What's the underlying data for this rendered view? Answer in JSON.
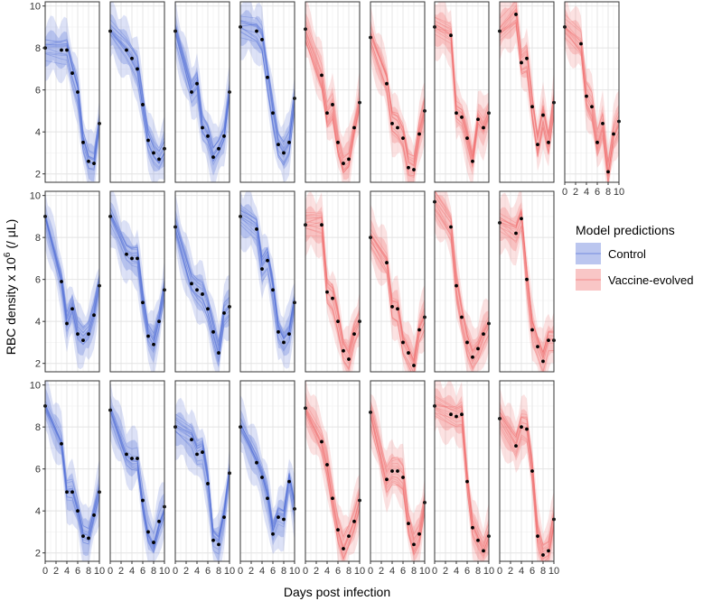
{
  "chart_data": {
    "type": "line",
    "facets": {
      "rows": 3,
      "cols": 9
    },
    "xlabel": "Days post infection",
    "ylabel": "RBC density x 10",
    "ylabel_sup": "6",
    "ylabel_suffix": " (/ μL)",
    "xlim": [
      0,
      10
    ],
    "ylim": [
      1.6,
      10.2
    ],
    "x_ticks": [
      0,
      2,
      4,
      6,
      8,
      10
    ],
    "y_ticks": [
      2,
      4,
      6,
      8,
      10
    ],
    "x_tick_labels": [
      "0",
      "2",
      "4",
      "6",
      "8",
      "10"
    ],
    "y_tick_labels": [
      "2",
      "4",
      "6",
      "8",
      "10"
    ],
    "grid": true,
    "legend": {
      "title": "Model predictions",
      "position": "right",
      "entries": [
        {
          "label": "Control",
          "color": "#5470d8"
        },
        {
          "label": "Vaccine-evolved",
          "color": "#f07070"
        }
      ]
    },
    "panels": [
      {
        "row": 0,
        "col": 0,
        "group": "Control",
        "points": [
          [
            0,
            8.0
          ],
          [
            3,
            7.9
          ],
          [
            4,
            7.9
          ],
          [
            5,
            6.8
          ],
          [
            6,
            5.9
          ],
          [
            7,
            3.5
          ],
          [
            8,
            2.6
          ],
          [
            9,
            2.5
          ],
          [
            10,
            4.4
          ]
        ]
      },
      {
        "row": 0,
        "col": 1,
        "group": "Control",
        "points": [
          [
            0,
            8.8
          ],
          [
            3,
            7.9
          ],
          [
            4,
            7.5
          ],
          [
            5,
            7.0
          ],
          [
            6,
            5.3
          ],
          [
            7,
            3.6
          ],
          [
            8,
            3.0
          ],
          [
            9,
            2.7
          ],
          [
            10,
            3.2
          ]
        ]
      },
      {
        "row": 0,
        "col": 2,
        "group": "Control",
        "points": [
          [
            0,
            8.8
          ],
          [
            3,
            5.9
          ],
          [
            4,
            6.3
          ],
          [
            5,
            4.2
          ],
          [
            6,
            3.8
          ],
          [
            7,
            2.8
          ],
          [
            8,
            3.2
          ],
          [
            9,
            3.8
          ],
          [
            10,
            5.9
          ]
        ]
      },
      {
        "row": 0,
        "col": 3,
        "group": "Control",
        "points": [
          [
            0,
            9.0
          ],
          [
            3,
            8.8
          ],
          [
            4,
            8.4
          ],
          [
            5,
            6.6
          ],
          [
            6,
            4.9
          ],
          [
            7,
            3.4
          ],
          [
            8,
            3.0
          ],
          [
            9,
            3.5
          ],
          [
            10,
            5.6
          ]
        ]
      },
      {
        "row": 0,
        "col": 4,
        "group": "Vaccine-evolved",
        "points": [
          [
            0,
            8.9
          ],
          [
            3,
            6.7
          ],
          [
            4,
            4.9
          ],
          [
            5,
            5.3
          ],
          [
            6,
            3.5
          ],
          [
            7,
            2.5
          ],
          [
            8,
            2.7
          ],
          [
            9,
            4.2
          ],
          [
            10,
            5.4
          ]
        ]
      },
      {
        "row": 0,
        "col": 5,
        "group": "Vaccine-evolved",
        "points": [
          [
            0,
            8.5
          ],
          [
            3,
            6.3
          ],
          [
            4,
            4.4
          ],
          [
            5,
            4.2
          ],
          [
            6,
            3.7
          ],
          [
            7,
            2.3
          ],
          [
            8,
            2.2
          ],
          [
            9,
            3.9
          ],
          [
            10,
            5.0
          ]
        ]
      },
      {
        "row": 0,
        "col": 6,
        "group": "Vaccine-evolved",
        "points": [
          [
            0,
            9.0
          ],
          [
            3,
            8.6
          ],
          [
            4,
            4.9
          ],
          [
            5,
            4.7
          ],
          [
            6,
            3.7
          ],
          [
            7,
            2.6
          ],
          [
            8,
            4.6
          ],
          [
            9,
            4.2
          ],
          [
            10,
            4.9
          ]
        ]
      },
      {
        "row": 0,
        "col": 7,
        "group": "Vaccine-evolved",
        "points": [
          [
            0,
            8.8
          ],
          [
            3,
            9.6
          ],
          [
            4,
            7.3
          ],
          [
            5,
            7.5
          ],
          [
            6,
            5.2
          ],
          [
            7,
            3.4
          ],
          [
            8,
            4.8
          ],
          [
            9,
            3.5
          ],
          [
            10,
            5.4
          ]
        ]
      },
      {
        "row": 0,
        "col": 8,
        "group": "Vaccine-evolved",
        "points": [
          [
            0,
            9.0
          ],
          [
            3,
            8.2
          ],
          [
            4,
            5.7
          ],
          [
            5,
            5.2
          ],
          [
            6,
            3.5
          ],
          [
            7,
            4.4
          ],
          [
            8,
            2.1
          ],
          [
            9,
            3.9
          ],
          [
            10,
            4.5
          ]
        ]
      },
      {
        "row": 1,
        "col": 0,
        "group": "Control",
        "points": [
          [
            0,
            9.0
          ],
          [
            3,
            5.9
          ],
          [
            4,
            3.9
          ],
          [
            5,
            4.6
          ],
          [
            6,
            3.4
          ],
          [
            7,
            3.1
          ],
          [
            8,
            3.4
          ],
          [
            9,
            4.3
          ],
          [
            10,
            5.7
          ]
        ]
      },
      {
        "row": 1,
        "col": 1,
        "group": "Control",
        "points": [
          [
            0,
            9.0
          ],
          [
            3,
            7.2
          ],
          [
            4,
            7.0
          ],
          [
            5,
            7.0
          ],
          [
            6,
            4.9
          ],
          [
            7,
            3.3
          ],
          [
            8,
            2.9
          ],
          [
            9,
            4.0
          ],
          [
            10,
            5.5
          ]
        ]
      },
      {
        "row": 1,
        "col": 2,
        "group": "Control",
        "points": [
          [
            0,
            8.5
          ],
          [
            3,
            5.8
          ],
          [
            4,
            5.5
          ],
          [
            5,
            5.3
          ],
          [
            6,
            4.6
          ],
          [
            7,
            3.5
          ],
          [
            8,
            2.5
          ],
          [
            9,
            4.4
          ],
          [
            10,
            4.7
          ]
        ]
      },
      {
        "row": 1,
        "col": 3,
        "group": "Control",
        "points": [
          [
            0,
            9.0
          ],
          [
            3,
            8.4
          ],
          [
            4,
            6.5
          ],
          [
            5,
            6.9
          ],
          [
            6,
            5.5
          ],
          [
            7,
            3.5
          ],
          [
            8,
            3.0
          ],
          [
            9,
            3.4
          ],
          [
            10,
            4.9
          ]
        ]
      },
      {
        "row": 1,
        "col": 4,
        "group": "Vaccine-evolved",
        "points": [
          [
            0,
            8.6
          ],
          [
            3,
            8.6
          ],
          [
            4,
            5.4
          ],
          [
            5,
            5.1
          ],
          [
            6,
            4.0
          ],
          [
            7,
            2.6
          ],
          [
            8,
            2.2
          ],
          [
            9,
            3.4
          ],
          [
            10,
            4.0
          ]
        ]
      },
      {
        "row": 1,
        "col": 5,
        "group": "Vaccine-evolved",
        "points": [
          [
            0,
            8.0
          ],
          [
            3,
            6.8
          ],
          [
            4,
            4.7
          ],
          [
            5,
            4.6
          ],
          [
            6,
            3.0
          ],
          [
            7,
            2.5
          ],
          [
            8,
            1.9
          ],
          [
            9,
            3.6
          ],
          [
            10,
            4.2
          ]
        ]
      },
      {
        "row": 1,
        "col": 6,
        "group": "Vaccine-evolved",
        "points": [
          [
            0,
            9.7
          ],
          [
            3,
            8.5
          ],
          [
            4,
            5.7
          ],
          [
            5,
            4.2
          ],
          [
            6,
            3.0
          ],
          [
            7,
            2.3
          ],
          [
            8,
            2.7
          ],
          [
            9,
            3.4
          ],
          [
            10,
            3.9
          ]
        ]
      },
      {
        "row": 1,
        "col": 7,
        "group": "Vaccine-evolved",
        "points": [
          [
            0,
            8.7
          ],
          [
            3,
            8.2
          ],
          [
            4,
            8.9
          ],
          [
            5,
            6.0
          ],
          [
            6,
            3.6
          ],
          [
            7,
            2.8
          ],
          [
            8,
            2.1
          ],
          [
            9,
            3.1
          ],
          [
            10,
            3.1
          ]
        ]
      },
      {
        "row": 2,
        "col": 0,
        "group": "Control",
        "points": [
          [
            0,
            9.0
          ],
          [
            3,
            7.2
          ],
          [
            4,
            4.9
          ],
          [
            5,
            4.9
          ],
          [
            6,
            4.0
          ],
          [
            7,
            2.8
          ],
          [
            8,
            2.7
          ],
          [
            9,
            3.8
          ],
          [
            10,
            4.9
          ]
        ]
      },
      {
        "row": 2,
        "col": 1,
        "group": "Control",
        "points": [
          [
            0,
            8.8
          ],
          [
            3,
            6.7
          ],
          [
            4,
            6.5
          ],
          [
            5,
            6.5
          ],
          [
            6,
            4.5
          ],
          [
            7,
            3.0
          ],
          [
            8,
            2.5
          ],
          [
            9,
            3.5
          ],
          [
            10,
            4.2
          ]
        ]
      },
      {
        "row": 2,
        "col": 2,
        "group": "Control",
        "points": [
          [
            0,
            8.0
          ],
          [
            3,
            7.4
          ],
          [
            4,
            6.7
          ],
          [
            5,
            6.8
          ],
          [
            6,
            5.3
          ],
          [
            7,
            2.6
          ],
          [
            8,
            2.4
          ],
          [
            9,
            3.7
          ],
          [
            10,
            5.8
          ]
        ]
      },
      {
        "row": 2,
        "col": 3,
        "group": "Control",
        "points": [
          [
            0,
            8.0
          ],
          [
            3,
            6.3
          ],
          [
            4,
            5.6
          ],
          [
            5,
            4.6
          ],
          [
            6,
            2.9
          ],
          [
            7,
            3.7
          ],
          [
            8,
            3.6
          ],
          [
            9,
            5.4
          ],
          [
            10,
            4.1
          ]
        ]
      },
      {
        "row": 2,
        "col": 4,
        "group": "Vaccine-evolved",
        "points": [
          [
            0,
            8.9
          ],
          [
            3,
            7.3
          ],
          [
            4,
            6.2
          ],
          [
            5,
            4.6
          ],
          [
            6,
            3.1
          ],
          [
            7,
            2.2
          ],
          [
            8,
            2.8
          ],
          [
            9,
            3.5
          ],
          [
            10,
            4.5
          ]
        ]
      },
      {
        "row": 2,
        "col": 5,
        "group": "Vaccine-evolved",
        "points": [
          [
            0,
            8.7
          ],
          [
            3,
            5.5
          ],
          [
            4,
            5.9
          ],
          [
            5,
            5.9
          ],
          [
            6,
            5.6
          ],
          [
            7,
            3.4
          ],
          [
            8,
            2.4
          ],
          [
            9,
            2.9
          ],
          [
            10,
            4.4
          ]
        ]
      },
      {
        "row": 2,
        "col": 6,
        "group": "Vaccine-evolved",
        "points": [
          [
            0,
            9.0
          ],
          [
            3,
            8.6
          ],
          [
            4,
            8.5
          ],
          [
            5,
            8.6
          ],
          [
            6,
            5.4
          ],
          [
            7,
            3.2
          ],
          [
            8,
            2.6
          ],
          [
            9,
            2.1
          ],
          [
            10,
            2.8
          ]
        ]
      },
      {
        "row": 2,
        "col": 7,
        "group": "Vaccine-evolved",
        "points": [
          [
            0,
            8.4
          ],
          [
            3,
            7.1
          ],
          [
            4,
            8.0
          ],
          [
            5,
            7.9
          ],
          [
            6,
            5.9
          ],
          [
            7,
            2.8
          ],
          [
            8,
            1.9
          ],
          [
            9,
            2.1
          ],
          [
            10,
            3.6
          ]
        ]
      }
    ]
  }
}
